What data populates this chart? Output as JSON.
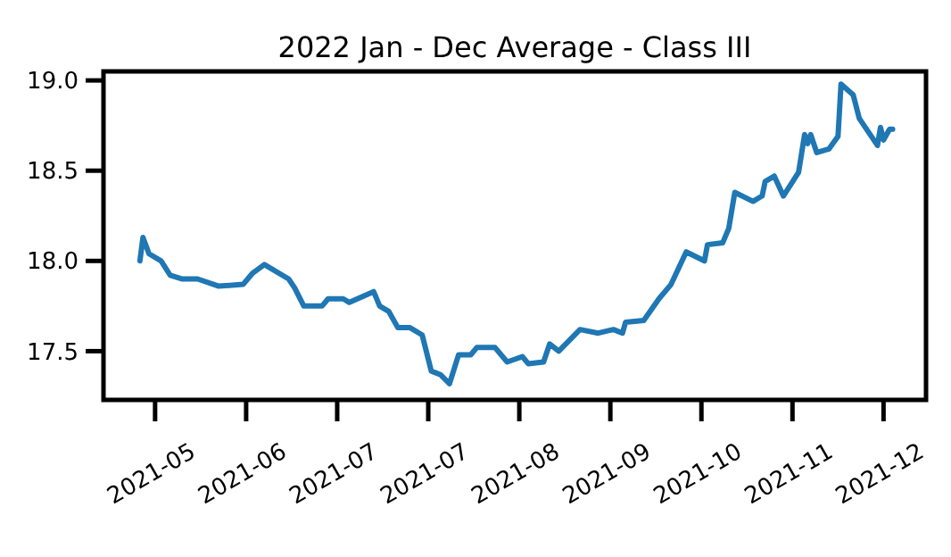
{
  "chart_data": {
    "type": "line",
    "title": "2022 Jan - Dec Average - Class III",
    "x": [
      "2021-04-27",
      "2021-04-28",
      "2021-04-30",
      "2021-05-04",
      "2021-05-07",
      "2021-05-11",
      "2021-05-16",
      "2021-05-23",
      "2021-05-31",
      "2021-06-03",
      "2021-06-07",
      "2021-06-15",
      "2021-06-17",
      "2021-06-20",
      "2021-06-26",
      "2021-06-28",
      "2021-07-03",
      "2021-07-05",
      "2021-07-09",
      "2021-07-13",
      "2021-07-15",
      "2021-07-18",
      "2021-07-21",
      "2021-07-25",
      "2021-07-29",
      "2021-08-01",
      "2021-08-04",
      "2021-08-07",
      "2021-08-10",
      "2021-08-14",
      "2021-08-16",
      "2021-08-22",
      "2021-08-26",
      "2021-08-31",
      "2021-09-02",
      "2021-09-07",
      "2021-09-09",
      "2021-09-12",
      "2021-09-19",
      "2021-09-25",
      "2021-09-30",
      "2021-10-03",
      "2021-10-04",
      "2021-10-10",
      "2021-10-15",
      "2021-10-19",
      "2021-10-24",
      "2021-10-30",
      "2021-10-31",
      "2021-11-05",
      "2021-11-07",
      "2021-11-09",
      "2021-11-15",
      "2021-11-18",
      "2021-11-19",
      "2021-11-22",
      "2021-11-25",
      "2021-11-30",
      "2021-12-02",
      "2021-12-03",
      "2021-12-04",
      "2021-12-06",
      "2021-12-10",
      "2021-12-13",
      "2021-12-14",
      "2021-12-18",
      "2021-12-20",
      "2021-12-26",
      "2021-12-27",
      "2021-12-28",
      "2021-12-30",
      "2021-12-31"
    ],
    "series": [
      {
        "color": "#1f77b4",
        "values": [
          18.0,
          18.13,
          18.04,
          18.0,
          17.92,
          17.9,
          17.9,
          17.86,
          17.87,
          17.93,
          17.98,
          17.9,
          17.85,
          17.75,
          17.75,
          17.79,
          17.79,
          17.77,
          17.8,
          17.83,
          17.75,
          17.72,
          17.63,
          17.63,
          17.59,
          17.39,
          17.37,
          17.32,
          17.48,
          17.48,
          17.52,
          17.52,
          17.44,
          17.47,
          17.43,
          17.44,
          17.54,
          17.5,
          17.62,
          17.6,
          17.62,
          17.6,
          17.66,
          17.67,
          17.79,
          17.87,
          18.05,
          18.0,
          18.09,
          18.1,
          18.18,
          18.38,
          18.33,
          18.36,
          18.44,
          18.47,
          18.36,
          18.49,
          18.7,
          18.65,
          18.7,
          18.6,
          18.62,
          18.69,
          18.98,
          18.92,
          18.79,
          18.64,
          18.74,
          18.67,
          18.73,
          18.73
        ]
      }
    ],
    "xlim": [
      "2021-04-15",
      "2022-01-11"
    ],
    "xticks": [
      {
        "value": "2021-05-02",
        "label": "2021-05"
      },
      {
        "value": "2021-06-01",
        "label": "2021-06"
      },
      {
        "value": "2021-07-01",
        "label": "2021-07"
      },
      {
        "value": "2021-07-31",
        "label": "2021-07"
      },
      {
        "value": "2021-08-30",
        "label": "2021-08"
      },
      {
        "value": "2021-09-29",
        "label": "2021-09"
      },
      {
        "value": "2021-10-29",
        "label": "2021-10"
      },
      {
        "value": "2021-11-28",
        "label": "2021-11"
      },
      {
        "value": "2021-12-28",
        "label": "2021-12"
      }
    ],
    "ylim": [
      17.23,
      19.05
    ],
    "yticks": [
      17.5,
      {
        "value": 18,
        "label": "18.0"
      },
      18.5,
      {
        "value": 19,
        "label": "19.0"
      }
    ],
    "grid": false,
    "marker": "none",
    "line_style": "solid"
  }
}
